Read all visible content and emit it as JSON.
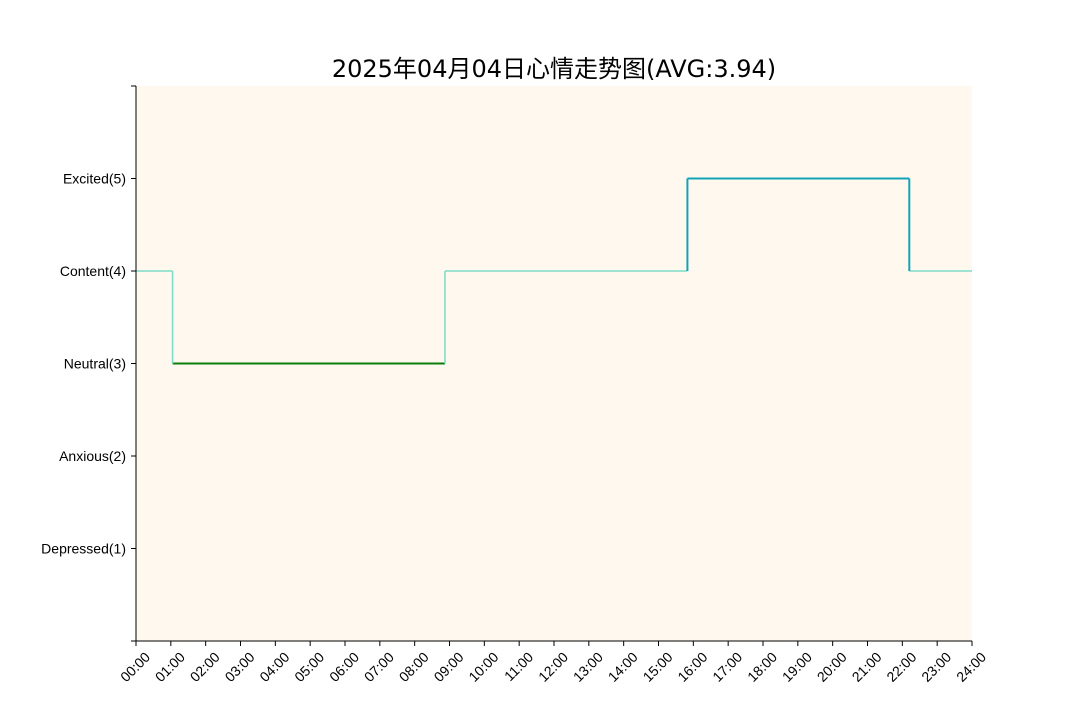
{
  "chart_data": {
    "type": "line",
    "title": "2025年04月04日心情走势图(AVG:3.94)",
    "xlabel": "",
    "ylabel": "",
    "x_ticks": [
      "00:00",
      "01:00",
      "02:00",
      "03:00",
      "04:00",
      "05:00",
      "06:00",
      "07:00",
      "08:00",
      "09:00",
      "10:00",
      "11:00",
      "12:00",
      "13:00",
      "14:00",
      "15:00",
      "16:00",
      "17:00",
      "18:00",
      "19:00",
      "20:00",
      "21:00",
      "22:00",
      "23:00",
      "24:00"
    ],
    "xlim": [
      0,
      24
    ],
    "ylim": [
      0,
      6
    ],
    "y_ticks": [
      {
        "value": 0,
        "label": ""
      },
      {
        "value": 1,
        "label": "Depressed(1)"
      },
      {
        "value": 2,
        "label": "Anxious(2)"
      },
      {
        "value": 3,
        "label": "Neutral(3)"
      },
      {
        "value": 4,
        "label": "Content(4)"
      },
      {
        "value": 5,
        "label": "Excited(5)"
      },
      {
        "value": 6,
        "label": ""
      }
    ],
    "plot_background": "#fff8ee",
    "segments": [
      {
        "x_start": 0.0,
        "x_end": 1.05,
        "value": 4,
        "color": "#7fdcc8"
      },
      {
        "x_start": 1.05,
        "x_end": 8.87,
        "value": 3,
        "color": "#0a7d0a"
      },
      {
        "x_start": 8.87,
        "x_end": 15.83,
        "value": 4,
        "color": "#7fdcc8"
      },
      {
        "x_start": 15.83,
        "x_end": 22.2,
        "value": 5,
        "color": "#12a3b5"
      },
      {
        "x_start": 22.2,
        "x_end": 24.0,
        "value": 4,
        "color": "#7fdcc8"
      }
    ],
    "grid": false,
    "legend": "none"
  }
}
